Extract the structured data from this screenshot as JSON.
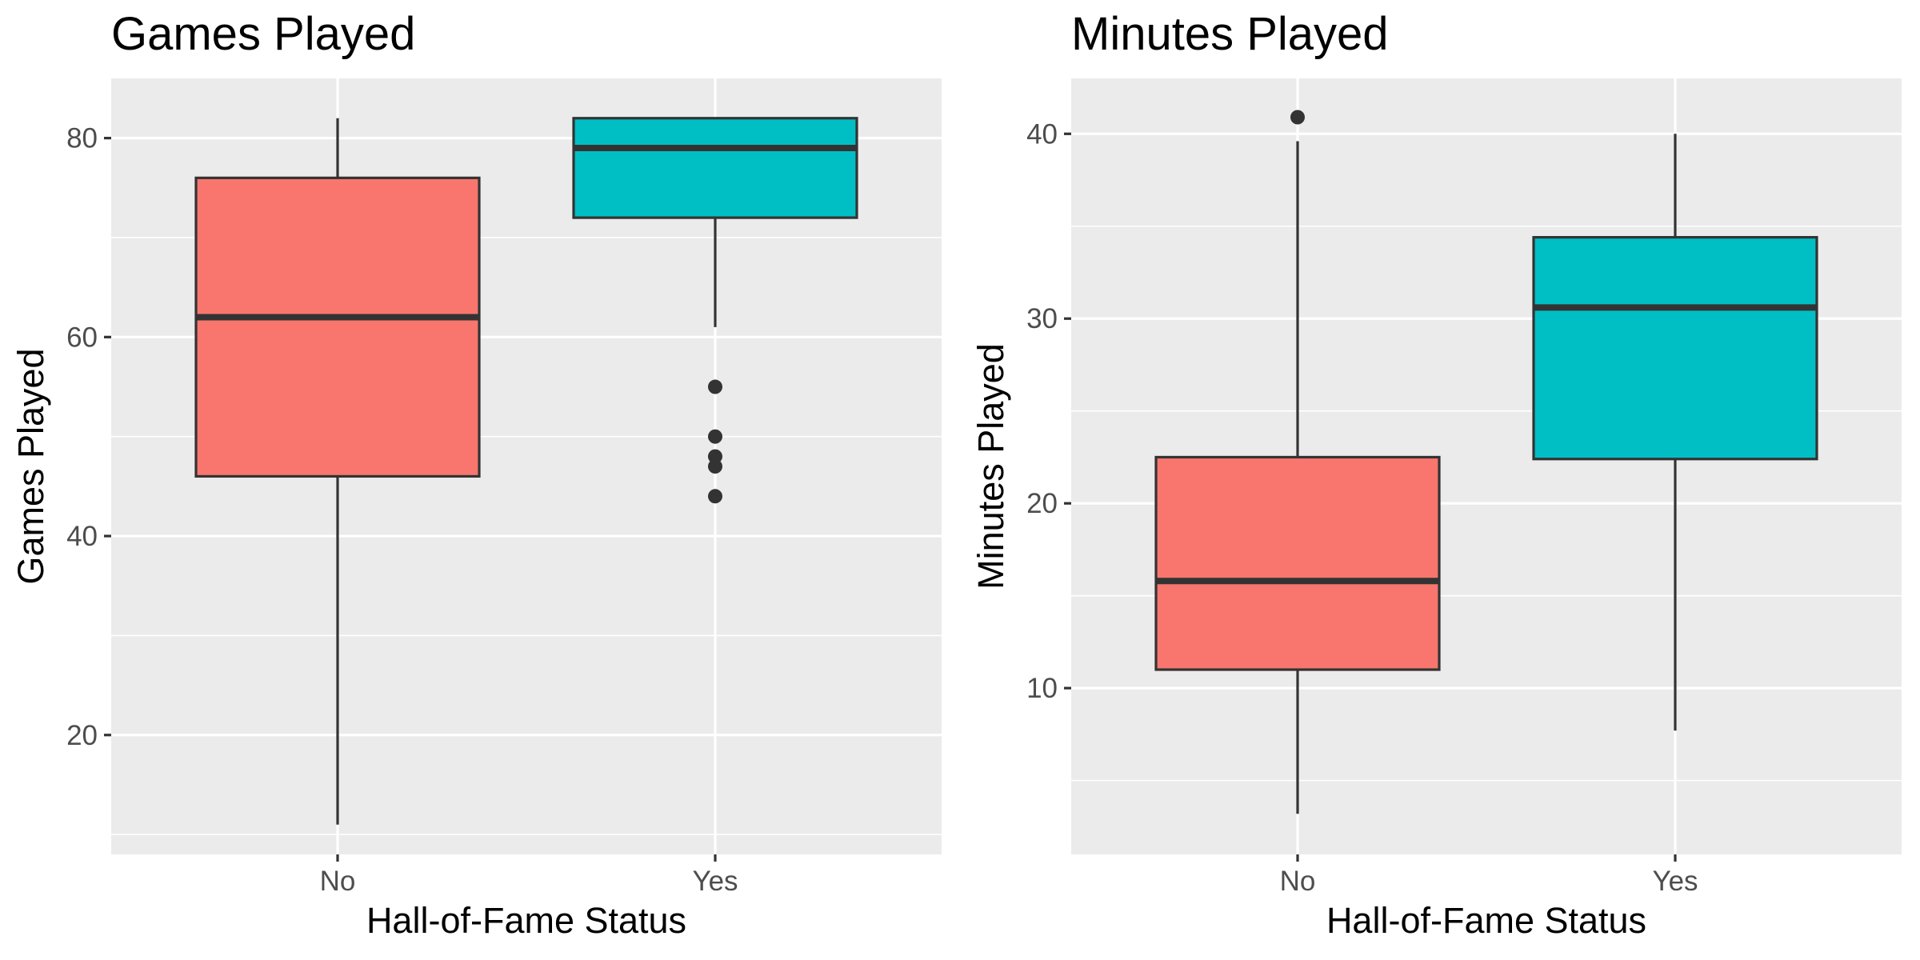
{
  "colors": {
    "no": "#F8766D",
    "yes": "#00BFC4"
  },
  "chart_data": [
    {
      "type": "box",
      "title": "Games Played",
      "xlabel": "Hall-of-Fame Status",
      "ylabel": "Games Played",
      "categories": [
        "No",
        "Yes"
      ],
      "ylim": [
        8,
        86
      ],
      "yticks": [
        20,
        40,
        60,
        80
      ],
      "yticks_minor": [
        10,
        30,
        50,
        70
      ],
      "grid": true,
      "legend": "none",
      "boxes": [
        {
          "category": "No",
          "min": 11,
          "q1": 46,
          "median": 62,
          "q3": 76,
          "max": 82,
          "outliers": []
        },
        {
          "category": "Yes",
          "min": 61,
          "q1": 72,
          "median": 79,
          "q3": 82,
          "max": 82,
          "outliers": [
            55,
            50,
            48,
            47,
            44
          ]
        }
      ]
    },
    {
      "type": "box",
      "title": "Minutes Played",
      "xlabel": "Hall-of-Fame Status",
      "ylabel": "Minutes Played",
      "categories": [
        "No",
        "Yes"
      ],
      "ylim": [
        1,
        43
      ],
      "yticks": [
        10,
        20,
        30,
        40
      ],
      "yticks_minor": [
        5,
        15,
        25,
        35
      ],
      "grid": true,
      "legend": "none",
      "boxes": [
        {
          "category": "No",
          "min": 3.2,
          "q1": 11.0,
          "median": 15.8,
          "q3": 22.5,
          "max": 39.6,
          "outliers": [
            40.9
          ]
        },
        {
          "category": "Yes",
          "min": 7.7,
          "q1": 22.4,
          "median": 30.6,
          "q3": 34.4,
          "max": 40.0,
          "outliers": []
        }
      ]
    }
  ]
}
